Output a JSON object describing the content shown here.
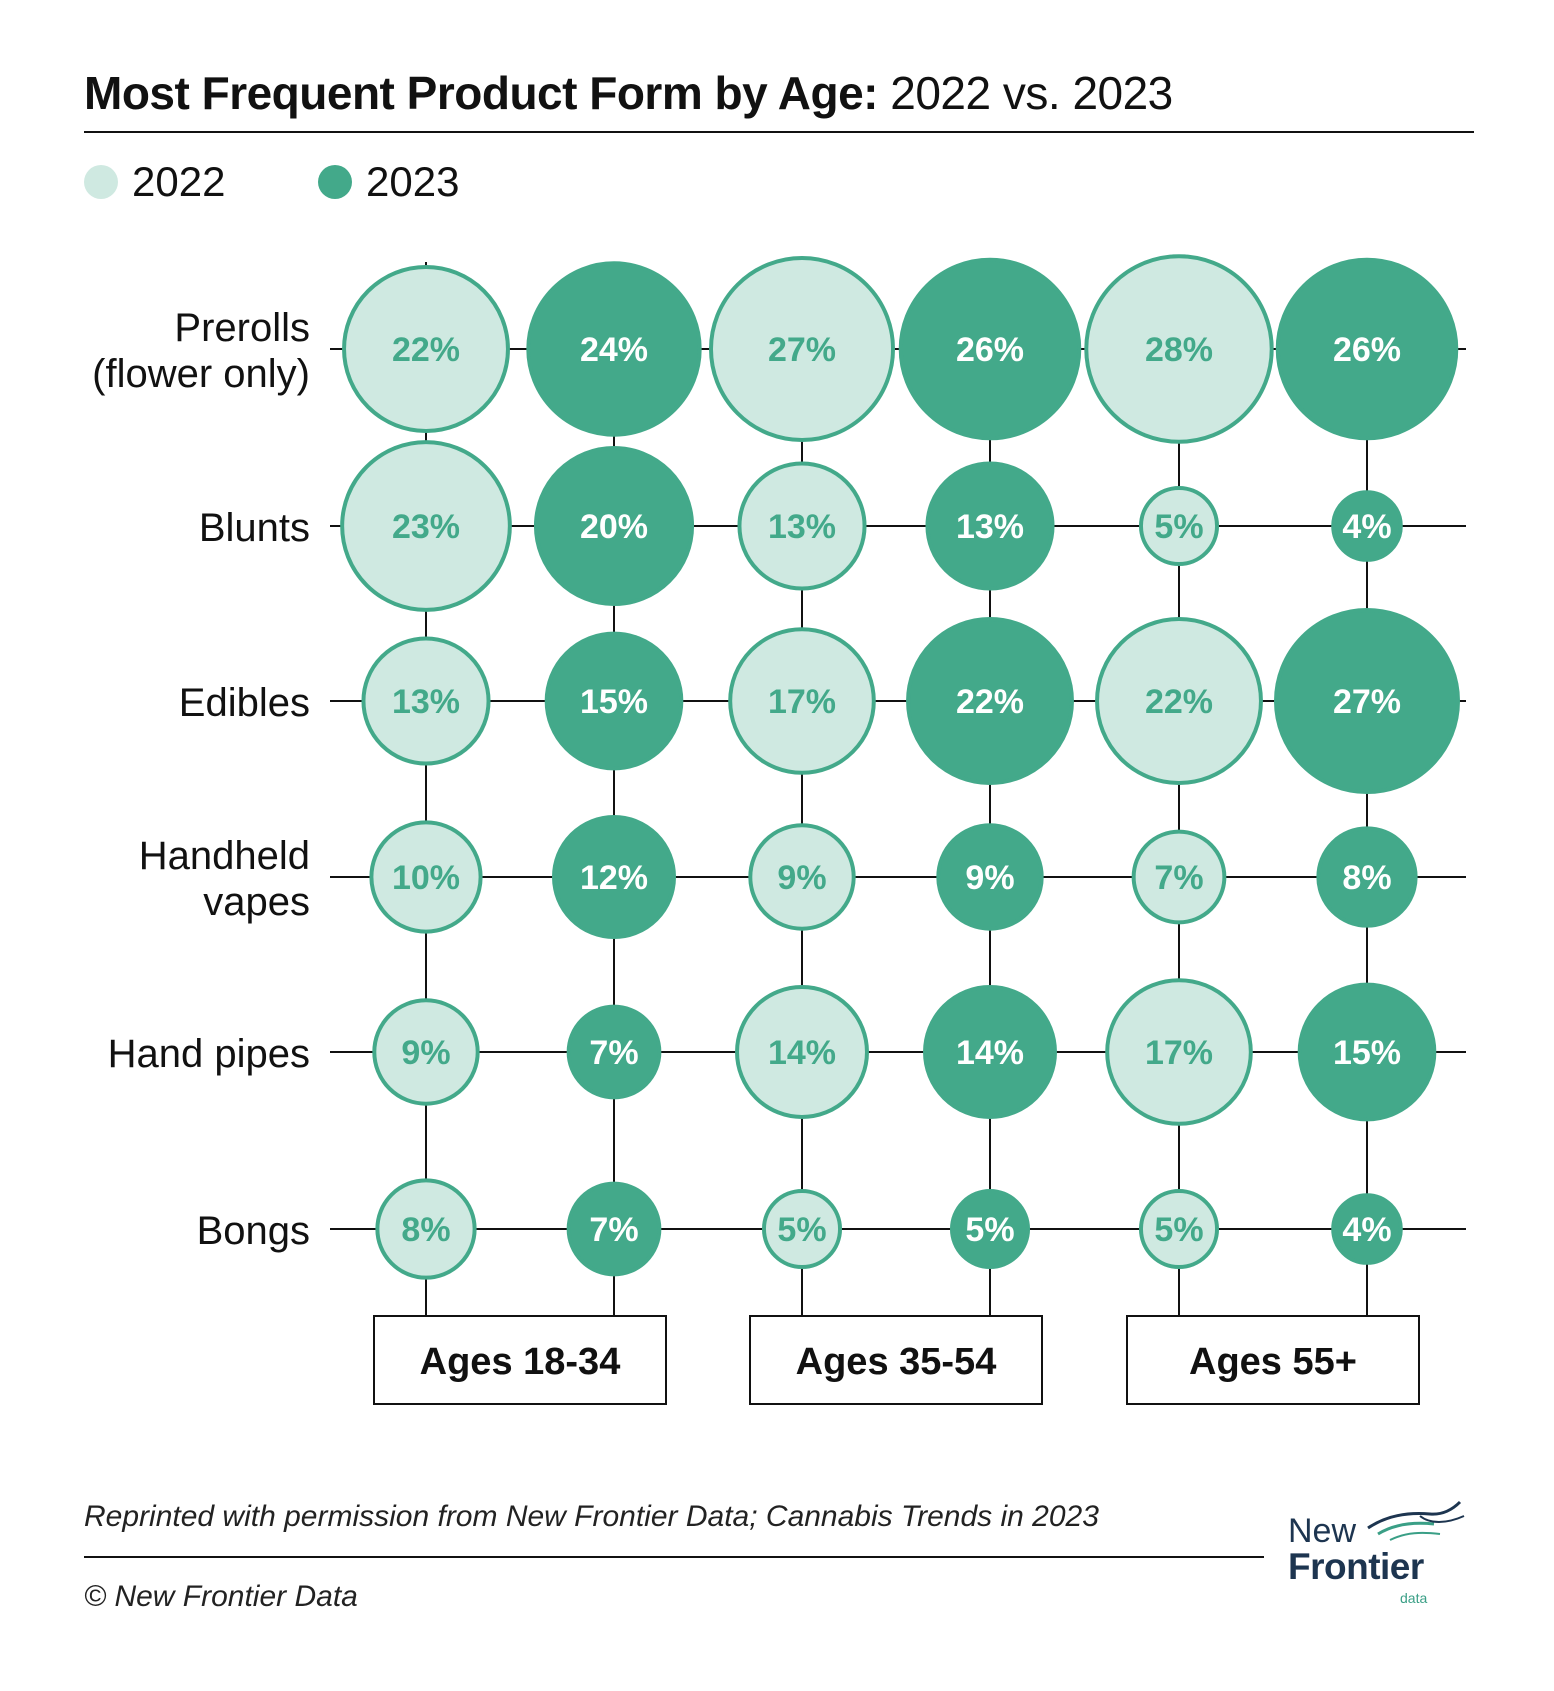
{
  "title": {
    "bold": "Most Frequent Product Form by Age:",
    "regular": " 2022 vs. 2023"
  },
  "legend": [
    {
      "label": "2022",
      "color": "#cfe9e1"
    },
    {
      "label": "2023",
      "color": "#43a98a"
    }
  ],
  "chart_data": {
    "type": "bubble-grid",
    "title": "Most Frequent Product Form by Age: 2022 vs. 2023",
    "rows": [
      "Prerolls (flower only)",
      "Blunts",
      "Edibles",
      "Handheld vapes",
      "Hand pipes",
      "Bongs"
    ],
    "row_label_lines": [
      [
        "Prerolls",
        "(flower only)"
      ],
      [
        "Blunts"
      ],
      [
        "Edibles"
      ],
      [
        "Handheld",
        "vapes"
      ],
      [
        "Hand pipes"
      ],
      [
        "Bongs"
      ]
    ],
    "groups": [
      "Ages 18-34",
      "Ages 35-54",
      "Ages 55+"
    ],
    "series": [
      {
        "name": "2022",
        "color": "#cfe9e1",
        "stroke": "#43a98a",
        "text_color": "#43a98a",
        "values": [
          [
            22,
            27,
            28
          ],
          [
            23,
            13,
            5
          ],
          [
            13,
            17,
            22
          ],
          [
            10,
            9,
            7
          ],
          [
            9,
            14,
            17
          ],
          [
            8,
            5,
            5
          ]
        ]
      },
      {
        "name": "2023",
        "color": "#43a98a",
        "stroke": "#43a98a",
        "text_color": "#ffffff",
        "values": [
          [
            24,
            26,
            26
          ],
          [
            20,
            13,
            4
          ],
          [
            15,
            22,
            27
          ],
          [
            12,
            9,
            8
          ],
          [
            7,
            14,
            15
          ],
          [
            7,
            5,
            4
          ]
        ]
      }
    ],
    "unit": "%"
  },
  "footer": {
    "source": "Reprinted with permission from New Frontier Data; Cannabis Trends in 2023",
    "copyright": "© New Frontier Data"
  },
  "logo": {
    "line1": "New",
    "line2": "Frontier",
    "line3": "data",
    "accent": "#3a9f86",
    "brand": "#1d3550"
  }
}
